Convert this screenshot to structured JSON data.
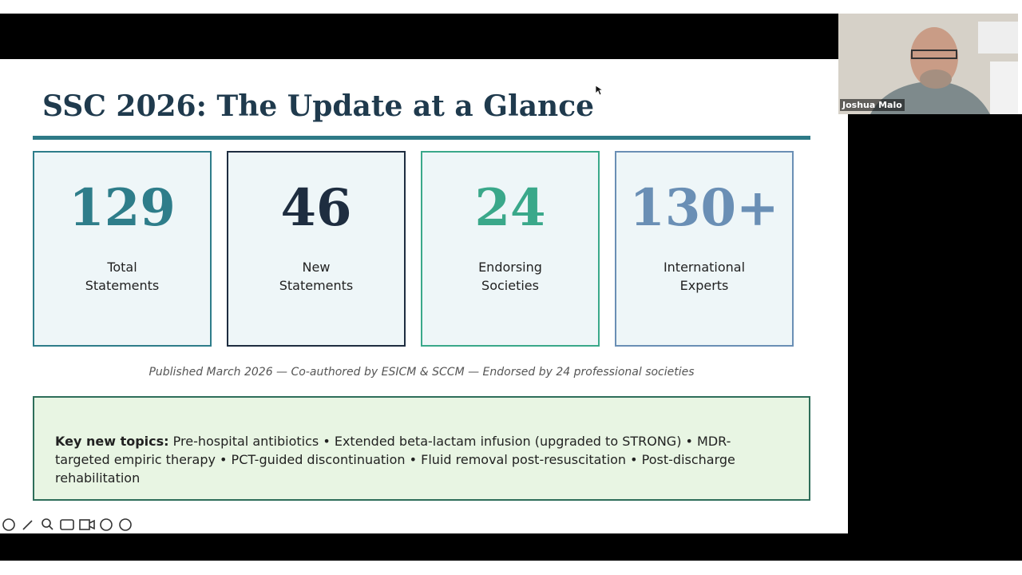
{
  "slide": {
    "title": "SSC 2026: The Update at a Glance",
    "stats": [
      {
        "value": "129",
        "label": [
          "Total",
          "Statements"
        ]
      },
      {
        "value": "46",
        "label": [
          "New",
          "Statements"
        ]
      },
      {
        "value": "24",
        "label": [
          "Endorsing",
          "Societies"
        ]
      },
      {
        "value": "130+",
        "label": [
          "International",
          "Experts"
        ]
      }
    ],
    "note": "Published March 2026 — Co-authored by ESICM & SCCM — Endorsed by 24 professional societies",
    "key_label": "Key new topics:",
    "key_text": "Pre-hospital antibiotics • Extended beta-lactam infusion (upgraded to STRONG) • MDR-targeted empiric therapy • PCT-guided discontinuation • Fluid removal post-resuscitation • Post-discharge rehabilitation"
  },
  "video": {
    "participant": "Joshua Malo"
  }
}
